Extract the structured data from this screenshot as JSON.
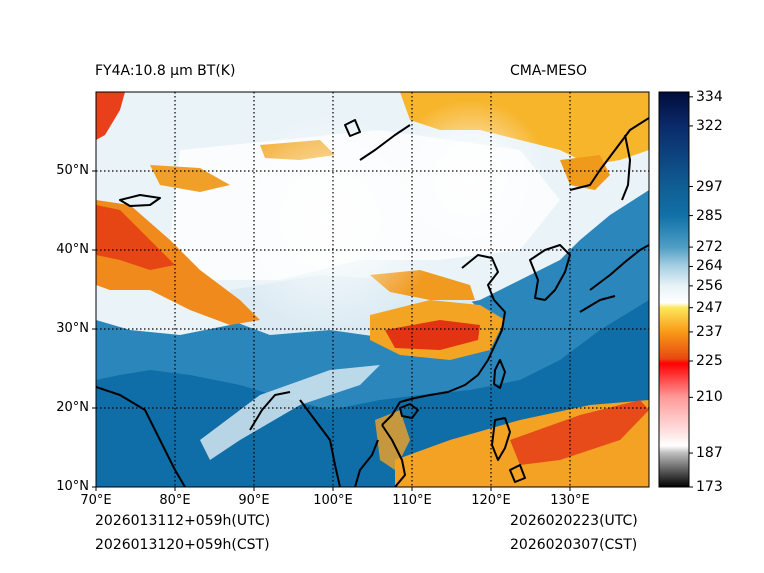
{
  "header": {
    "title_left": "FY4A:10.8 µm BT(K)",
    "title_right": "CMA-MESO"
  },
  "footer": {
    "init_utc": "2026013112+059h(UTC)",
    "init_cst": "2026013120+059h(CST)",
    "valid_utc": "2026020223(UTC)",
    "valid_cst": "2026020307(CST)"
  },
  "map": {
    "lon_range": [
      70,
      140
    ],
    "lat_range": [
      10,
      60
    ],
    "lon_ticks": [
      {
        "value": 70,
        "label": "70°E"
      },
      {
        "value": 80,
        "label": "80°E"
      },
      {
        "value": 90,
        "label": "90°E"
      },
      {
        "value": 100,
        "label": "100°E"
      },
      {
        "value": 110,
        "label": "110°E"
      },
      {
        "value": 120,
        "label": "120°E"
      },
      {
        "value": 130,
        "label": "130°E"
      }
    ],
    "lat_ticks": [
      {
        "value": 10,
        "label": "10°N"
      },
      {
        "value": 20,
        "label": "20°N"
      },
      {
        "value": 30,
        "label": "30°N"
      },
      {
        "value": 40,
        "label": "40°N"
      },
      {
        "value": 50,
        "label": "50°N"
      }
    ]
  },
  "colorbar": {
    "range": [
      173,
      336
    ],
    "ticks": [
      {
        "value": 334,
        "label": "334"
      },
      {
        "value": 322,
        "label": "322"
      },
      {
        "value": 297,
        "label": "297"
      },
      {
        "value": 285,
        "label": "285"
      },
      {
        "value": 272,
        "label": "272"
      },
      {
        "value": 264,
        "label": "264"
      },
      {
        "value": 256,
        "label": "256"
      },
      {
        "value": 247,
        "label": "247"
      },
      {
        "value": 237,
        "label": "237"
      },
      {
        "value": 225,
        "label": "225"
      },
      {
        "value": 210,
        "label": "210"
      },
      {
        "value": 187,
        "label": "187"
      },
      {
        "value": 173,
        "label": "173"
      }
    ],
    "stops": [
      {
        "value": 173,
        "color": "#000000"
      },
      {
        "value": 187,
        "color": "#bdbdbd"
      },
      {
        "value": 190,
        "color": "#ffffff"
      },
      {
        "value": 210,
        "color": "#ff9a9a"
      },
      {
        "value": 224,
        "color": "#ff0000"
      },
      {
        "value": 226,
        "color": "#e84a10"
      },
      {
        "value": 237,
        "color": "#f99a18"
      },
      {
        "value": 247,
        "color": "#fce85a"
      },
      {
        "value": 249,
        "color": "#ffffff"
      },
      {
        "value": 256,
        "color": "#e8f2f7"
      },
      {
        "value": 264,
        "color": "#a8d0e2"
      },
      {
        "value": 272,
        "color": "#4f9ec4"
      },
      {
        "value": 285,
        "color": "#1171a8"
      },
      {
        "value": 297,
        "color": "#0f5e94"
      },
      {
        "value": 322,
        "color": "#0a2a6a"
      },
      {
        "value": 336,
        "color": "#020c3a"
      }
    ]
  },
  "colors": {
    "ocean": "#0f6ea8",
    "land": "#2b80b6",
    "cloud_cold": "#f5f9fc",
    "cloud_orange": "#f5a623",
    "cloud_red": "#e03010",
    "coast": "#000000"
  }
}
